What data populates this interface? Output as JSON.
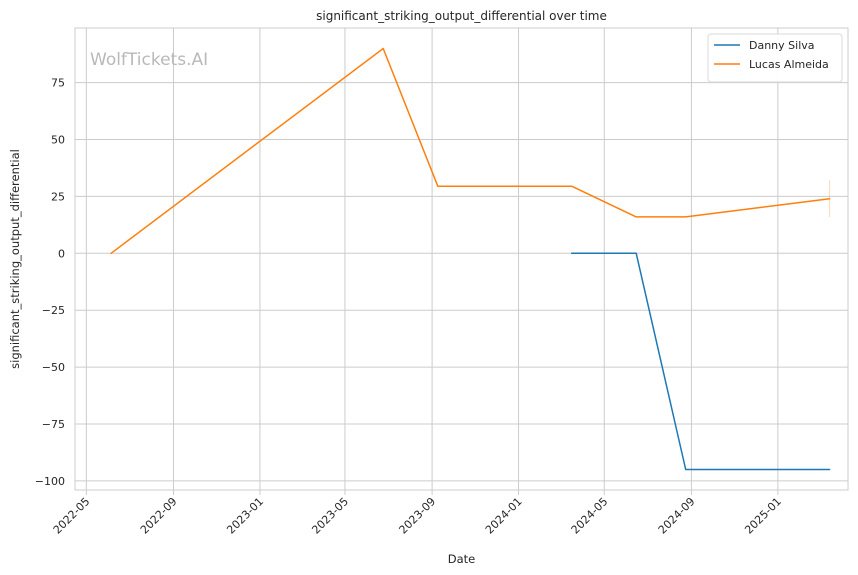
{
  "chart_data": {
    "type": "line",
    "title": "significant_striking_output_differential over time",
    "xlabel": "Date",
    "ylabel": "significant_striking_output_differential",
    "watermark": "WolfTickets.AI",
    "x_ticks": [
      "2022-05",
      "2022-09",
      "2023-01",
      "2023-05",
      "2023-09",
      "2024-01",
      "2024-05",
      "2024-09",
      "2025-01"
    ],
    "y_ticks": [
      -100,
      -75,
      -50,
      -25,
      0,
      25,
      50,
      75
    ],
    "y_tick_labels": [
      "−100",
      "−75",
      "−50",
      "−25",
      "0",
      "25",
      "50",
      "75"
    ],
    "xlim": [
      "2022-04-15",
      "2025-04-10"
    ],
    "ylim": [
      -104,
      99
    ],
    "grid": true,
    "legend_position": "top-right",
    "series": [
      {
        "name": "Danny Silva",
        "color": "#1f77b4",
        "x": [
          "2024-03-16",
          "2024-06-15",
          "2024-08-24",
          "2025-03-15"
        ],
        "y": [
          0,
          0,
          -95,
          -95
        ]
      },
      {
        "name": "Lucas Almeida",
        "color": "#ff7f0e",
        "x": [
          "2022-06-05",
          "2023-06-24",
          "2023-09-09",
          "2024-03-16",
          "2024-06-15",
          "2024-08-24",
          "2025-03-15"
        ],
        "y": [
          0,
          90,
          29.5,
          29.5,
          16,
          16,
          24
        ]
      }
    ]
  }
}
